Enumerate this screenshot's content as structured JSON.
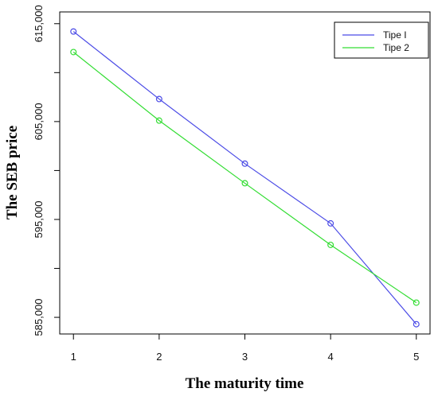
{
  "chart_data": {
    "type": "line",
    "title": "",
    "xlabel": "The maturity time",
    "ylabel": "The SEB price",
    "x": [
      1,
      2,
      3,
      4,
      5
    ],
    "xlim": [
      0.84,
      5.16
    ],
    "ylim": [
      583300,
      616200
    ],
    "x_ticks": [
      1,
      2,
      3,
      4,
      5
    ],
    "y_ticks": [
      585000,
      590000,
      595000,
      600000,
      605000,
      610000,
      615000
    ],
    "y_tick_labels": [
      "585,000",
      "",
      "595,000",
      "",
      "605,000",
      "",
      "615,000"
    ],
    "grid": false,
    "legend_position": "top-right",
    "series": [
      {
        "name": "Tipe I",
        "color": "#4B4BE6",
        "marker": "circle",
        "values": [
          614200,
          607300,
          600700,
          594600,
          584300
        ]
      },
      {
        "name": "Tipe 2",
        "color": "#33DD33",
        "marker": "circle",
        "values": [
          612100,
          605100,
          598700,
          592400,
          586500
        ]
      }
    ]
  }
}
